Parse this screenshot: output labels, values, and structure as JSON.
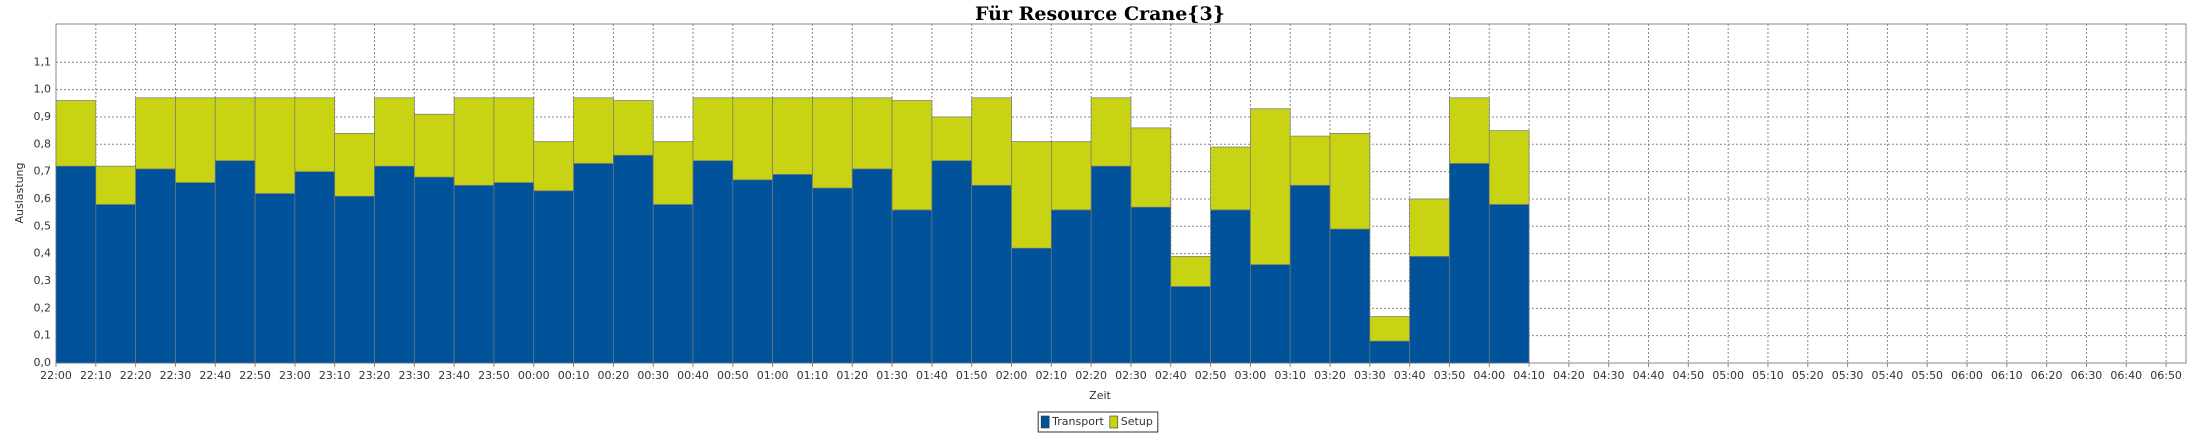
{
  "chart_data": {
    "type": "stacked_bar",
    "title": "Für Resource Crane{3}",
    "xlabel": "Zeit",
    "ylabel": "Auslastung",
    "categories": [
      "22:00",
      "22:10",
      "22:20",
      "22:30",
      "22:40",
      "22:50",
      "23:00",
      "23:10",
      "23:20",
      "23:30",
      "23:40",
      "23:50",
      "00:00",
      "00:10",
      "00:20",
      "00:30",
      "00:40",
      "00:50",
      "01:00",
      "01:10",
      "01:20",
      "01:30",
      "01:40",
      "01:50",
      "02:00",
      "02:10",
      "02:20",
      "02:30",
      "02:40",
      "02:50",
      "03:00",
      "03:10",
      "03:20",
      "03:30",
      "03:40",
      "03:50",
      "04:00"
    ],
    "xticks": [
      "22:00",
      "22:10",
      "22:20",
      "22:30",
      "22:40",
      "22:50",
      "23:00",
      "23:10",
      "23:20",
      "23:30",
      "23:40",
      "23:50",
      "00:00",
      "00:10",
      "00:20",
      "00:30",
      "00:40",
      "00:50",
      "01:00",
      "01:10",
      "01:20",
      "01:30",
      "01:40",
      "01:50",
      "02:00",
      "02:10",
      "02:20",
      "02:30",
      "02:40",
      "02:50",
      "03:00",
      "03:10",
      "03:20",
      "03:30",
      "03:40",
      "03:50",
      "04:00",
      "04:10",
      "04:20",
      "04:30",
      "04:40",
      "04:50",
      "05:00",
      "05:10",
      "05:20",
      "05:30",
      "05:40",
      "05:50",
      "06:00",
      "06:10",
      "06:20",
      "06:30",
      "06:40",
      "06:50"
    ],
    "series": [
      {
        "name": "Transport",
        "color": "#00529b",
        "values": [
          0.72,
          0.58,
          0.71,
          0.66,
          0.74,
          0.62,
          0.7,
          0.61,
          0.72,
          0.68,
          0.65,
          0.66,
          0.63,
          0.73,
          0.76,
          0.58,
          0.74,
          0.67,
          0.69,
          0.64,
          0.71,
          0.56,
          0.74,
          0.65,
          0.42,
          0.56,
          0.72,
          0.57,
          0.28,
          0.56,
          0.36,
          0.65,
          0.49,
          0.08,
          0.39,
          0.73,
          0.58
        ]
      },
      {
        "name": "Setup",
        "color": "#c8d314",
        "values": [
          0.24,
          0.14,
          0.26,
          0.31,
          0.23,
          0.35,
          0.27,
          0.23,
          0.25,
          0.23,
          0.32,
          0.31,
          0.18,
          0.24,
          0.2,
          0.23,
          0.23,
          0.3,
          0.28,
          0.33,
          0.26,
          0.4,
          0.16,
          0.32,
          0.39,
          0.25,
          0.25,
          0.29,
          0.11,
          0.23,
          0.57,
          0.18,
          0.35,
          0.09,
          0.21,
          0.24,
          0.27
        ]
      }
    ],
    "ylim": [
      0,
      1.24
    ],
    "yticks": [
      {
        "value": 0,
        "label": "0,0"
      },
      {
        "value": 0.1,
        "label": "0,1"
      },
      {
        "value": 0.2,
        "label": "0,2"
      },
      {
        "value": 0.3,
        "label": "0,3"
      },
      {
        "value": 0.4,
        "label": "0,4"
      },
      {
        "value": 0.5,
        "label": "0,5"
      },
      {
        "value": 0.6,
        "label": "0,6"
      },
      {
        "value": 0.7,
        "label": "0,7"
      },
      {
        "value": 0.8,
        "label": "0,8"
      },
      {
        "value": 0.9,
        "label": "0,9"
      },
      {
        "value": 1.0,
        "label": "1,0"
      },
      {
        "value": 1.1,
        "label": "1,1"
      }
    ],
    "grid": true,
    "legend": "bottom"
  }
}
